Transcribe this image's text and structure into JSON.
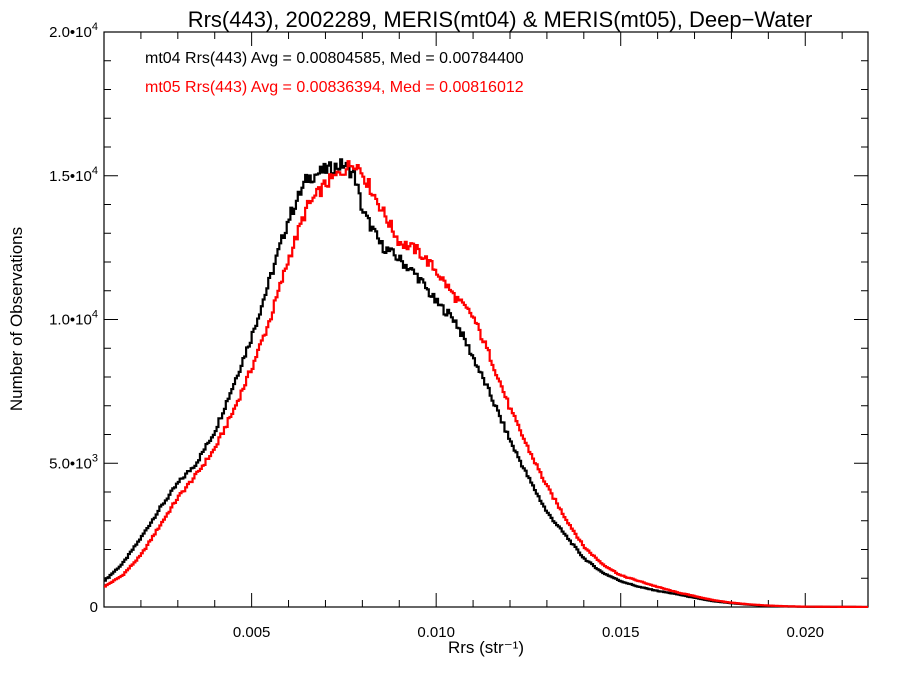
{
  "chart_data": {
    "type": "line",
    "title": "Rrs(443), 2002289, MERIS(mt04) & MERIS(mt05), Deep−Water",
    "xlabel": "Rrs (str⁻¹)",
    "ylabel": "Number of Observations",
    "xlim": [
      0.001,
      0.0217
    ],
    "ylim": [
      0,
      20000
    ],
    "x_ticks": [
      {
        "value": 0.005,
        "label": "0.005"
      },
      {
        "value": 0.01,
        "label": "0.010"
      },
      {
        "value": 0.015,
        "label": "0.015"
      },
      {
        "value": 0.02,
        "label": "0.020"
      }
    ],
    "y_ticks": [
      {
        "value": 0,
        "mantissa": "0",
        "exponent": ""
      },
      {
        "value": 5000,
        "mantissa": "5.0•10",
        "exponent": "3"
      },
      {
        "value": 10000,
        "mantissa": "1.0•10",
        "exponent": "4"
      },
      {
        "value": 15000,
        "mantissa": "1.5•10",
        "exponent": "4"
      },
      {
        "value": 20000,
        "mantissa": "2.0•10",
        "exponent": "4"
      }
    ],
    "annotations": [
      {
        "text": "mt04 Rrs(443) Avg = 0.00804585, Med = 0.00784400",
        "color": "#000000"
      },
      {
        "text": "mt05 Rrs(443) Avg = 0.00836394, Med = 0.00816012",
        "color": "#ff0000"
      }
    ],
    "series": [
      {
        "key": "mt04",
        "color": "#000000",
        "points": [
          [
            0.001,
            900
          ],
          [
            0.0015,
            1500
          ],
          [
            0.002,
            2400
          ],
          [
            0.0025,
            3400
          ],
          [
            0.003,
            4300
          ],
          [
            0.0035,
            5000
          ],
          [
            0.004,
            6100
          ],
          [
            0.0045,
            7700
          ],
          [
            0.005,
            9400
          ],
          [
            0.0055,
            11400
          ],
          [
            0.006,
            13500
          ],
          [
            0.0065,
            14900
          ],
          [
            0.007,
            15200
          ],
          [
            0.0075,
            15400
          ],
          [
            0.0078,
            15000
          ],
          [
            0.008,
            13800
          ],
          [
            0.0085,
            12600
          ],
          [
            0.009,
            12100
          ],
          [
            0.0095,
            11500
          ],
          [
            0.01,
            10600
          ],
          [
            0.0105,
            10000
          ],
          [
            0.011,
            8700
          ],
          [
            0.0115,
            7300
          ],
          [
            0.012,
            5800
          ],
          [
            0.0125,
            4500
          ],
          [
            0.013,
            3300
          ],
          [
            0.0135,
            2500
          ],
          [
            0.014,
            1700
          ],
          [
            0.0145,
            1200
          ],
          [
            0.015,
            900
          ],
          [
            0.0155,
            700
          ],
          [
            0.016,
            560
          ],
          [
            0.0165,
            450
          ],
          [
            0.017,
            320
          ],
          [
            0.0175,
            200
          ],
          [
            0.018,
            130
          ],
          [
            0.0185,
            80
          ],
          [
            0.019,
            40
          ],
          [
            0.0195,
            20
          ],
          [
            0.02,
            10
          ],
          [
            0.021,
            4
          ],
          [
            0.0217,
            2
          ]
        ]
      },
      {
        "key": "mt05",
        "color": "#ff0000",
        "points": [
          [
            0.001,
            700
          ],
          [
            0.0015,
            1100
          ],
          [
            0.002,
            1800
          ],
          [
            0.0025,
            2800
          ],
          [
            0.003,
            3800
          ],
          [
            0.0035,
            4600
          ],
          [
            0.004,
            5500
          ],
          [
            0.0045,
            6800
          ],
          [
            0.005,
            8300
          ],
          [
            0.0055,
            10000
          ],
          [
            0.006,
            12100
          ],
          [
            0.0065,
            13900
          ],
          [
            0.007,
            14700
          ],
          [
            0.0075,
            15200
          ],
          [
            0.0078,
            15500
          ],
          [
            0.008,
            15100
          ],
          [
            0.0085,
            13900
          ],
          [
            0.009,
            12700
          ],
          [
            0.0095,
            12400
          ],
          [
            0.01,
            11700
          ],
          [
            0.0105,
            10800
          ],
          [
            0.011,
            10100
          ],
          [
            0.0115,
            8600
          ],
          [
            0.012,
            6900
          ],
          [
            0.0125,
            5500
          ],
          [
            0.013,
            4200
          ],
          [
            0.0135,
            3100
          ],
          [
            0.014,
            2100
          ],
          [
            0.0145,
            1500
          ],
          [
            0.015,
            1100
          ],
          [
            0.0155,
            900
          ],
          [
            0.016,
            700
          ],
          [
            0.0165,
            520
          ],
          [
            0.017,
            380
          ],
          [
            0.0175,
            240
          ],
          [
            0.018,
            150
          ],
          [
            0.0185,
            90
          ],
          [
            0.019,
            50
          ],
          [
            0.0195,
            25
          ],
          [
            0.02,
            12
          ],
          [
            0.021,
            5
          ],
          [
            0.0217,
            2
          ]
        ]
      }
    ]
  }
}
